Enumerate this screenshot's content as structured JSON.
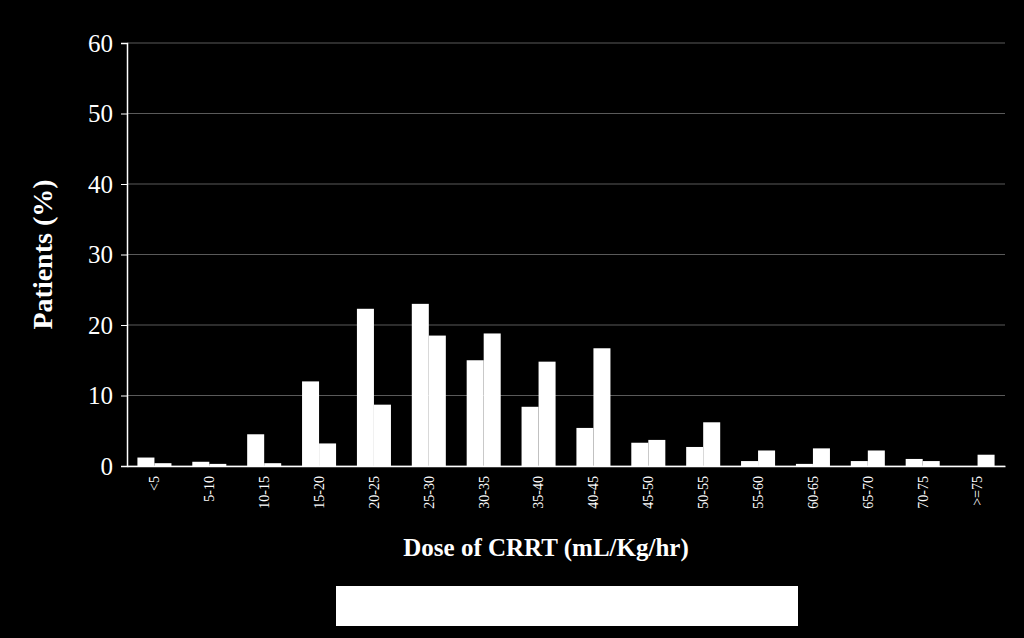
{
  "chart_data": {
    "type": "bar",
    "x_label": "Dose of CRRT (mL/Kg/hr)",
    "y_label": "Patients (%)",
    "categories": [
      "<5",
      "5-10",
      "10-15",
      "15-20",
      "20-25",
      "25-30",
      "30-35",
      "35-40",
      "40-45",
      "45-50",
      "50-55",
      "55-60",
      "60-65",
      "65-70",
      "70-75",
      ">=75"
    ],
    "series": [
      {
        "color": "#ffffff",
        "values": [
          1.2,
          0.6,
          4.5,
          12,
          22.3,
          23,
          15,
          8.4,
          5.4,
          3.3,
          2.7,
          0.7,
          0.3,
          0.7,
          1.0,
          0
        ]
      },
      {
        "color": "#ffffff",
        "values": [
          0.4,
          0.3,
          0.4,
          3.2,
          8.7,
          18.5,
          18.8,
          14.8,
          16.7,
          3.7,
          6.2,
          2.2,
          2.5,
          2.2,
          0.7,
          1.6
        ]
      }
    ],
    "ylim": [
      0,
      60
    ],
    "yticks": [
      0,
      10,
      20,
      30,
      40,
      50,
      60
    ],
    "grid": true
  }
}
